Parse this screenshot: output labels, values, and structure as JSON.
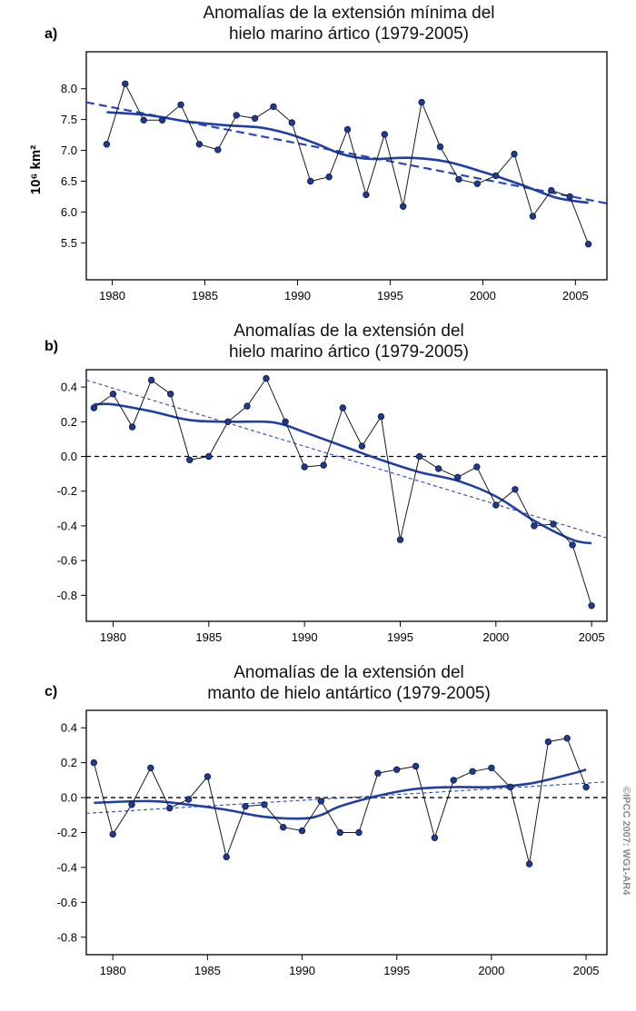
{
  "credit": "©IPCC 2007: WG1-AR4",
  "colors": {
    "data_line": "#1a1a1a",
    "marker": "#1f3a8f",
    "smooth": "#1f3fa6",
    "trend": "#2a47b8",
    "zero": "#000000"
  },
  "chart_data": [
    {
      "panel_label": "a)",
      "type": "line",
      "title_lines": [
        "Anomalías de la extensión mínima del",
        "hielo marino ártico (1979-2005)"
      ],
      "ylabel": "10⁶ km²",
      "xlim": [
        1978.6,
        2006.7
      ],
      "ylim": [
        4.9,
        8.6
      ],
      "xticks": [
        1980,
        1985,
        1990,
        1995,
        2000,
        2005
      ],
      "yticks": [
        5.5,
        6.0,
        6.5,
        7.0,
        7.5,
        8.0
      ],
      "ytick_labels": [
        "5.5",
        "6.0",
        "6.5",
        "7.0",
        "7.5",
        "8.0"
      ],
      "x": [
        1979.7,
        1980.7,
        1981.7,
        1982.7,
        1983.7,
        1984.7,
        1985.7,
        1986.7,
        1987.7,
        1988.7,
        1989.7,
        1990.7,
        1991.7,
        1992.7,
        1993.7,
        1994.7,
        1995.7,
        1996.7,
        1997.7,
        1998.7,
        1999.7,
        2000.7,
        2001.7,
        2002.7,
        2003.7,
        2004.7,
        2005.7
      ],
      "values": [
        7.1,
        8.08,
        7.49,
        7.49,
        7.74,
        7.1,
        7.01,
        7.57,
        7.52,
        7.71,
        7.45,
        6.5,
        6.57,
        7.34,
        6.28,
        7.26,
        6.09,
        7.78,
        7.06,
        6.53,
        6.46,
        6.59,
        6.94,
        5.93,
        6.35,
        6.25,
        5.48
      ],
      "smooth": [
        [
          1979.7,
          7.62
        ],
        [
          1982,
          7.57
        ],
        [
          1984,
          7.47
        ],
        [
          1986,
          7.41
        ],
        [
          1988,
          7.37
        ],
        [
          1989.5,
          7.27
        ],
        [
          1991,
          7.11
        ],
        [
          1992.5,
          6.93
        ],
        [
          1994,
          6.86
        ],
        [
          1996,
          6.88
        ],
        [
          1998,
          6.82
        ],
        [
          2000,
          6.65
        ],
        [
          2002,
          6.45
        ],
        [
          2004,
          6.23
        ],
        [
          2005.7,
          6.15
        ]
      ],
      "trend": [
        [
          1978.6,
          7.78
        ],
        [
          2006.7,
          6.14
        ]
      ],
      "trend_style": "thick",
      "zero_line": false
    },
    {
      "panel_label": "b)",
      "type": "line",
      "title_lines": [
        "Anomalías de la extensión del",
        "hielo marino ártico (1979-2005)"
      ],
      "ylabel": "",
      "xlim": [
        1978.6,
        2005.8
      ],
      "ylim": [
        -0.95,
        0.5
      ],
      "xticks": [
        1980,
        1985,
        1990,
        1995,
        2000,
        2005
      ],
      "yticks": [
        -0.8,
        -0.6,
        -0.4,
        -0.2,
        0.0,
        0.2,
        0.4
      ],
      "ytick_labels": [
        "-0.8",
        "-0.6",
        "-0.4",
        "-0.2",
        "0.0",
        "0.2",
        "0.4"
      ],
      "x": [
        1979,
        1980,
        1981,
        1982,
        1983,
        1984,
        1985,
        1986,
        1987,
        1988,
        1989,
        1990,
        1991,
        1992,
        1993,
        1994,
        1995,
        1996,
        1997,
        1998,
        1999,
        2000,
        2001,
        2002,
        2003,
        2004,
        2005
      ],
      "values": [
        0.28,
        0.36,
        0.17,
        0.44,
        0.36,
        -0.02,
        0.0,
        0.2,
        0.29,
        0.45,
        0.2,
        -0.06,
        -0.05,
        0.28,
        0.06,
        0.23,
        -0.48,
        0.0,
        -0.07,
        -0.12,
        -0.06,
        -0.28,
        -0.19,
        -0.4,
        -0.39,
        -0.51,
        -0.86
      ],
      "smooth": [
        [
          1979,
          0.3
        ],
        [
          1980,
          0.3
        ],
        [
          1982,
          0.26
        ],
        [
          1984,
          0.21
        ],
        [
          1986,
          0.2
        ],
        [
          1988,
          0.2
        ],
        [
          1989,
          0.18
        ],
        [
          1990,
          0.14
        ],
        [
          1992,
          0.06
        ],
        [
          1994,
          -0.02
        ],
        [
          1996,
          -0.09
        ],
        [
          1998,
          -0.14
        ],
        [
          2000,
          -0.23
        ],
        [
          2002,
          -0.37
        ],
        [
          2004,
          -0.48
        ],
        [
          2005,
          -0.5
        ]
      ],
      "trend": [
        [
          1978.6,
          0.44
        ],
        [
          2005.8,
          -0.47
        ]
      ],
      "trend_style": "thin",
      "zero_line": true
    },
    {
      "panel_label": "c)",
      "type": "line",
      "title_lines": [
        "Anomalías de la extensión del",
        "manto de hielo antártico (1979-2005)"
      ],
      "ylabel": "",
      "xlim": [
        1978.6,
        2006.1
      ],
      "ylim": [
        -0.9,
        0.5
      ],
      "xticks": [
        1980,
        1985,
        1990,
        1995,
        2000,
        2005
      ],
      "yticks": [
        -0.8,
        -0.6,
        -0.4,
        -0.2,
        0.0,
        0.2,
        0.4
      ],
      "ytick_labels": [
        "-0.8",
        "-0.6",
        "-0.4",
        "-0.2",
        "0.0",
        "0.2",
        "0.4"
      ],
      "x": [
        1979,
        1980,
        1981,
        1982,
        1983,
        1984,
        1985,
        1986,
        1987,
        1988,
        1989,
        1990,
        1991,
        1992,
        1993,
        1994,
        1995,
        1996,
        1997,
        1998,
        1999,
        2000,
        2001,
        2002,
        2003,
        2004,
        2005
      ],
      "values": [
        0.2,
        -0.21,
        -0.04,
        0.17,
        -0.06,
        -0.01,
        0.12,
        -0.34,
        -0.05,
        -0.04,
        -0.17,
        -0.19,
        -0.02,
        -0.2,
        -0.2,
        0.14,
        0.16,
        0.18,
        -0.23,
        0.1,
        0.15,
        0.17,
        0.06,
        -0.38,
        0.32,
        0.34,
        0.06
      ],
      "smooth": [
        [
          1979,
          -0.03
        ],
        [
          1982,
          -0.02
        ],
        [
          1984,
          -0.04
        ],
        [
          1986,
          -0.07
        ],
        [
          1988,
          -0.11
        ],
        [
          1990,
          -0.12
        ],
        [
          1991,
          -0.1
        ],
        [
          1992,
          -0.05
        ],
        [
          1994,
          0.01
        ],
        [
          1996,
          0.05
        ],
        [
          1998,
          0.06
        ],
        [
          2000,
          0.06
        ],
        [
          2002,
          0.08
        ],
        [
          2004,
          0.13
        ],
        [
          2005,
          0.16
        ]
      ],
      "trend": [
        [
          1978.6,
          -0.09
        ],
        [
          2006.1,
          0.09
        ]
      ],
      "trend_style": "thin",
      "zero_line": true
    }
  ]
}
